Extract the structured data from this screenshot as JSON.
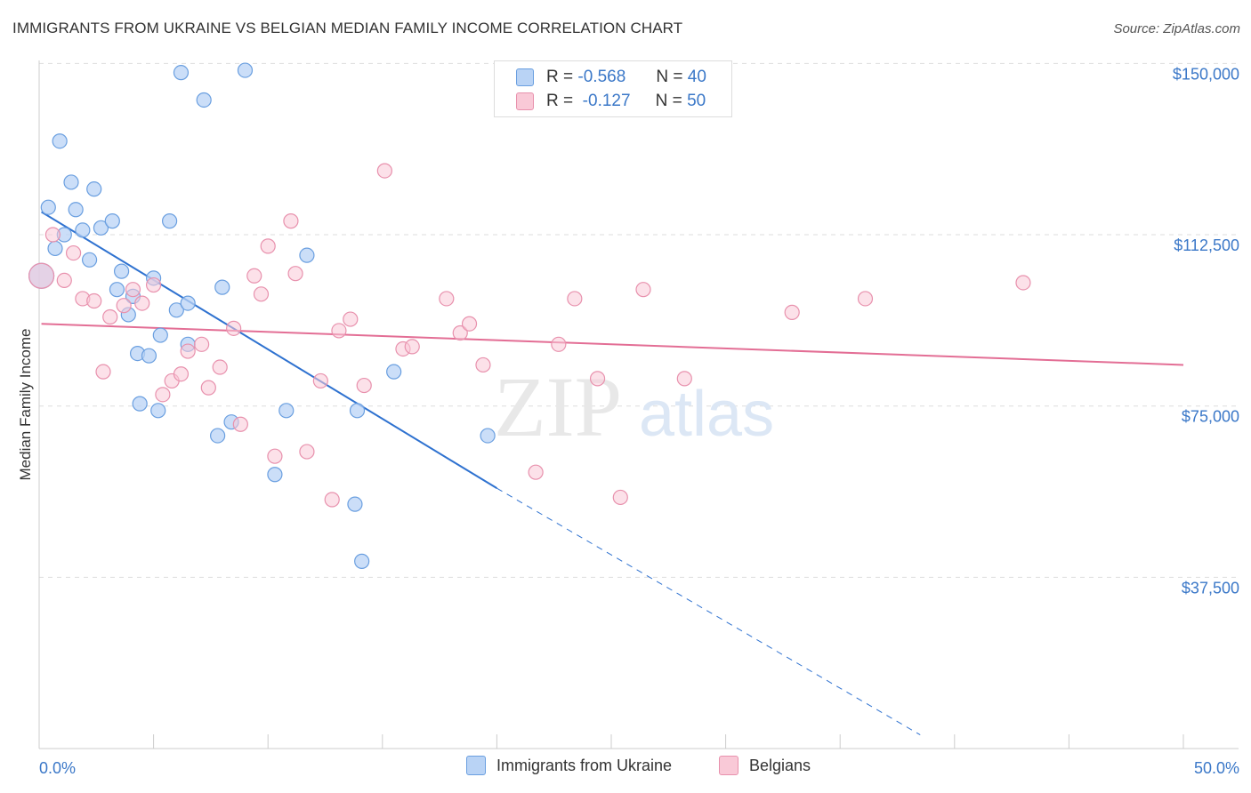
{
  "title": "IMMIGRANTS FROM UKRAINE VS BELGIAN MEDIAN FAMILY INCOME CORRELATION CHART",
  "source": "Source: ZipAtlas.com",
  "watermark": {
    "zip": "ZIP",
    "atlas": "atlas"
  },
  "legend": {
    "r_label": "R =",
    "n_label": "N =",
    "rows": [
      {
        "r": "-0.568",
        "n": "40",
        "fill": "#b9d3f5",
        "stroke": "#6a9fe0"
      },
      {
        "r": "-0.127",
        "n": "50",
        "fill": "#f9c9d7",
        "stroke": "#e891ad"
      }
    ]
  },
  "bottom_legend": [
    "Immigrants from Ukraine",
    "Belgians"
  ],
  "chart_data": {
    "type": "scatter",
    "title": "IMMIGRANTS FROM UKRAINE VS BELGIAN MEDIAN FAMILY INCOME CORRELATION CHART",
    "xlabel": "",
    "ylabel": "Median Family Income",
    "xlim": [
      0,
      50
    ],
    "ylim": [
      0,
      160000
    ],
    "x_tick_labels": [
      "0.0%",
      "50.0%"
    ],
    "y_ticks": [
      37500,
      75000,
      112500,
      150000
    ],
    "y_tick_labels": [
      "$37,500",
      "$75,000",
      "$112,500",
      "$150,000"
    ],
    "grid": "horizontal dashed",
    "legend_position": "top-center",
    "series": [
      {
        "name": "Immigrants from Ukraine",
        "color": "#6a9fe0",
        "fill": "#b9d3f5",
        "trend": {
          "x": [
            0.1,
            20.0
          ],
          "y": [
            117500,
            57000
          ],
          "dashed_to": [
            38.5,
            3000
          ],
          "color": "#2f72d0"
        },
        "points": [
          [
            0.1,
            103500
          ],
          [
            0.4,
            118500
          ],
          [
            0.7,
            109500
          ],
          [
            0.9,
            133000
          ],
          [
            1.1,
            112500
          ],
          [
            1.4,
            124000
          ],
          [
            1.6,
            118000
          ],
          [
            1.9,
            113500
          ],
          [
            2.2,
            107000
          ],
          [
            2.4,
            122500
          ],
          [
            2.7,
            114000
          ],
          [
            3.2,
            115500
          ],
          [
            3.4,
            100500
          ],
          [
            3.6,
            104500
          ],
          [
            3.9,
            95000
          ],
          [
            4.1,
            99000
          ],
          [
            4.3,
            86500
          ],
          [
            4.4,
            75500
          ],
          [
            4.8,
            86000
          ],
          [
            5.0,
            103000
          ],
          [
            5.2,
            74000
          ],
          [
            5.3,
            90500
          ],
          [
            5.7,
            115500
          ],
          [
            6.0,
            96000
          ],
          [
            6.2,
            148000
          ],
          [
            6.5,
            97500
          ],
          [
            6.5,
            88500
          ],
          [
            7.2,
            142000
          ],
          [
            7.8,
            68500
          ],
          [
            8.0,
            101000
          ],
          [
            8.4,
            71500
          ],
          [
            9.0,
            148500
          ],
          [
            10.3,
            60000
          ],
          [
            10.8,
            74000
          ],
          [
            11.7,
            108000
          ],
          [
            13.8,
            53500
          ],
          [
            13.9,
            74000
          ],
          [
            14.1,
            41000
          ],
          [
            15.5,
            82500
          ],
          [
            19.6,
            68500
          ]
        ]
      },
      {
        "name": "Belgians",
        "color": "#e891ad",
        "fill": "#f9c9d7",
        "trend": {
          "x": [
            0.1,
            50.0
          ],
          "y": [
            93000,
            84000
          ],
          "color": "#e36e95"
        },
        "points": [
          [
            0.1,
            103500
          ],
          [
            0.6,
            112500
          ],
          [
            1.1,
            102500
          ],
          [
            1.5,
            108500
          ],
          [
            1.9,
            98500
          ],
          [
            2.4,
            98000
          ],
          [
            2.8,
            82500
          ],
          [
            3.1,
            94500
          ],
          [
            3.7,
            97000
          ],
          [
            4.1,
            100500
          ],
          [
            4.5,
            97500
          ],
          [
            5.0,
            101500
          ],
          [
            5.4,
            77500
          ],
          [
            5.8,
            80500
          ],
          [
            6.2,
            82000
          ],
          [
            6.5,
            87000
          ],
          [
            7.1,
            88500
          ],
          [
            7.4,
            79000
          ],
          [
            7.9,
            83500
          ],
          [
            8.5,
            92000
          ],
          [
            8.8,
            71000
          ],
          [
            9.4,
            103500
          ],
          [
            9.7,
            99500
          ],
          [
            10.0,
            110000
          ],
          [
            10.3,
            64000
          ],
          [
            11.0,
            115500
          ],
          [
            11.2,
            104000
          ],
          [
            11.7,
            65000
          ],
          [
            12.3,
            80500
          ],
          [
            12.8,
            54500
          ],
          [
            13.1,
            91500
          ],
          [
            13.6,
            94000
          ],
          [
            14.2,
            79500
          ],
          [
            15.1,
            126500
          ],
          [
            15.9,
            87500
          ],
          [
            16.3,
            88000
          ],
          [
            17.8,
            98500
          ],
          [
            18.4,
            91000
          ],
          [
            18.8,
            93000
          ],
          [
            19.4,
            84000
          ],
          [
            21.7,
            60500
          ],
          [
            22.7,
            88500
          ],
          [
            23.4,
            98500
          ],
          [
            24.4,
            81000
          ],
          [
            25.4,
            55000
          ],
          [
            26.4,
            100500
          ],
          [
            28.2,
            81000
          ],
          [
            32.9,
            95500
          ],
          [
            36.1,
            98500
          ],
          [
            43.0,
            102000
          ]
        ]
      }
    ]
  }
}
